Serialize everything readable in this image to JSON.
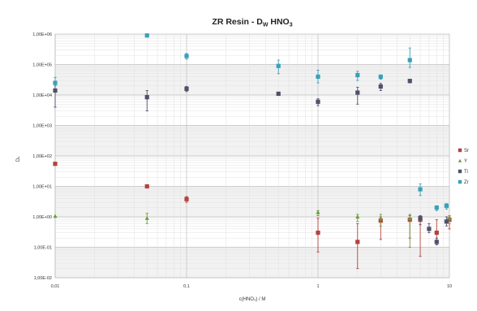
{
  "chart_data": {
    "type": "scatter",
    "title": "ZR Resin - D",
    "title_sub": "W",
    "title_tail": " HNO",
    "title_sub2": "3",
    "xlabel": "c(HNO₃) / M",
    "ylabel": "Dᵥ",
    "x_scale": "log",
    "y_scale": "log",
    "xlim": [
      0.01,
      10
    ],
    "ylim": [
      0.01,
      1000000
    ],
    "grid": true,
    "legend_position": "right",
    "x_ticks": [
      {
        "value": 0.01,
        "label": "0,01"
      },
      {
        "value": 0.1,
        "label": "0,1"
      },
      {
        "value": 1,
        "label": "1"
      },
      {
        "value": 10,
        "label": "10"
      }
    ],
    "y_ticks": [
      {
        "value": 1000000,
        "label": "1,00E+06"
      },
      {
        "value": 100000,
        "label": "1,00E+05"
      },
      {
        "value": 10000,
        "label": "1,00E+04"
      },
      {
        "value": 1000,
        "label": "1,00E+03"
      },
      {
        "value": 100,
        "label": "1,00E+02"
      },
      {
        "value": 10,
        "label": "1,00E+01"
      },
      {
        "value": 1,
        "label": "1,00E+00"
      },
      {
        "value": 0.1,
        "label": "1,00E-01"
      },
      {
        "value": 0.01,
        "label": "1,00E-02"
      }
    ],
    "series": [
      {
        "name": "Sr",
        "color": "#b5413c",
        "marker": "square",
        "points": [
          {
            "x": 0.01,
            "y": 55,
            "lo": 55,
            "hi": 55
          },
          {
            "x": 0.05,
            "y": 10,
            "lo": 10,
            "hi": 10
          },
          {
            "x": 0.1,
            "y": 3.8,
            "lo": 3.0,
            "hi": 4.6
          },
          {
            "x": 1,
            "y": 0.3,
            "lo": 0.07,
            "hi": 0.9
          },
          {
            "x": 2,
            "y": 0.15,
            "lo": 0.02,
            "hi": 0.6
          },
          {
            "x": 3,
            "y": 0.75,
            "lo": 0.18,
            "hi": 1.0
          },
          {
            "x": 5,
            "y": 0.8,
            "lo": 0.2,
            "hi": 1.1
          },
          {
            "x": 6,
            "y": 0.8,
            "lo": 0.05,
            "hi": 1.1
          },
          {
            "x": 8,
            "y": 0.3,
            "lo": 0.15,
            "hi": 0.8
          },
          {
            "x": 10,
            "y": 0.8,
            "lo": 0.4,
            "hi": 1.0
          }
        ]
      },
      {
        "name": "Y",
        "color": "#6e9a3a",
        "marker": "triangle",
        "points": [
          {
            "x": 0.01,
            "y": 1.05,
            "lo": 1.05,
            "hi": 1.05
          },
          {
            "x": 0.05,
            "y": 0.9,
            "lo": 0.6,
            "hi": 1.3
          },
          {
            "x": 1,
            "y": 1.4,
            "lo": 1.1,
            "hi": 1.6
          },
          {
            "x": 2,
            "y": 1.0,
            "lo": 0.7,
            "hi": 1.2
          },
          {
            "x": 3,
            "y": 0.9,
            "lo": 0.5,
            "hi": 1.2
          },
          {
            "x": 5,
            "y": 0.9,
            "lo": 0.1,
            "hi": 1.2
          },
          {
            "x": 10,
            "y": 0.9,
            "lo": 0.6,
            "hi": 1.1
          }
        ]
      },
      {
        "name": "Ti",
        "color": "#50506a",
        "marker": "square",
        "points": [
          {
            "x": 0.01,
            "y": 14000,
            "lo": 4000,
            "hi": 22000
          },
          {
            "x": 0.05,
            "y": 8500,
            "lo": 3000,
            "hi": 14000
          },
          {
            "x": 0.1,
            "y": 16000,
            "lo": 13000,
            "hi": 19000
          },
          {
            "x": 0.5,
            "y": 11000,
            "lo": 10000,
            "hi": 12000
          },
          {
            "x": 1,
            "y": 6000,
            "lo": 4500,
            "hi": 7500
          },
          {
            "x": 2,
            "y": 12000,
            "lo": 5000,
            "hi": 18000
          },
          {
            "x": 3,
            "y": 19000,
            "lo": 14000,
            "hi": 24000
          },
          {
            "x": 5,
            "y": 29000,
            "lo": 25000,
            "hi": 32000
          },
          {
            "x": 6,
            "y": 0.9,
            "lo": 0.55,
            "hi": 1.05
          },
          {
            "x": 7,
            "y": 0.4,
            "lo": 0.3,
            "hi": 0.6
          },
          {
            "x": 8,
            "y": 0.15,
            "lo": 0.12,
            "hi": 0.2
          },
          {
            "x": 9.5,
            "y": 0.7,
            "lo": 0.5,
            "hi": 1.0
          }
        ]
      },
      {
        "name": "Zr",
        "color": "#3aa0b8",
        "marker": "square",
        "points": [
          {
            "x": 0.01,
            "y": 25000,
            "lo": 20000,
            "hi": 38000
          },
          {
            "x": 0.05,
            "y": 900000,
            "lo": 900000,
            "hi": 900000
          },
          {
            "x": 0.1,
            "y": 190000,
            "lo": 150000,
            "hi": 230000
          },
          {
            "x": 0.5,
            "y": 90000,
            "lo": 50000,
            "hi": 140000
          },
          {
            "x": 1,
            "y": 40000,
            "lo": 25000,
            "hi": 65000
          },
          {
            "x": 2,
            "y": 45000,
            "lo": 30000,
            "hi": 60000
          },
          {
            "x": 3,
            "y": 40000,
            "lo": 33000,
            "hi": 45000
          },
          {
            "x": 5,
            "y": 140000,
            "lo": 80000,
            "hi": 350000
          },
          {
            "x": 6,
            "y": 8,
            "lo": 5,
            "hi": 12
          },
          {
            "x": 8,
            "y": 2,
            "lo": 1.6,
            "hi": 2.3
          },
          {
            "x": 9.5,
            "y": 2.3,
            "lo": 1.8,
            "hi": 2.7
          }
        ]
      }
    ]
  }
}
